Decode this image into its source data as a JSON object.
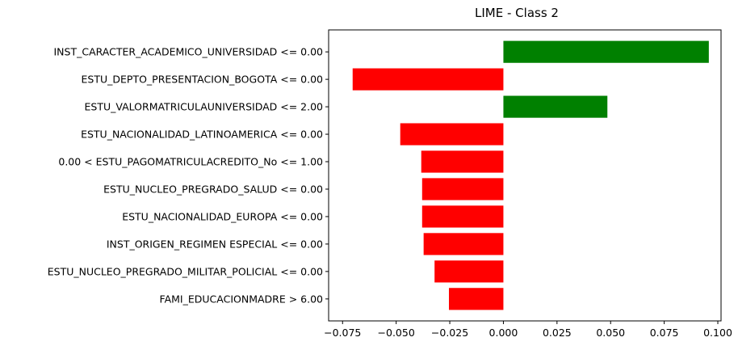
{
  "chart_data": {
    "type": "bar",
    "orientation": "horizontal",
    "title": "LIME - Class 2",
    "xlabel": "",
    "ylabel": "",
    "xlim": [
      -0.0815,
      0.1015
    ],
    "xticks": [
      -0.075,
      -0.05,
      -0.025,
      0.0,
      0.025,
      0.05,
      0.075,
      0.1
    ],
    "xtick_labels": [
      "−0.075",
      "−0.050",
      "−0.025",
      "0.000",
      "0.025",
      "0.050",
      "0.075",
      "0.100"
    ],
    "grid": false,
    "positive_color": "#008000",
    "negative_color": "#ff0000",
    "categories": [
      "INST_CARACTER_ACADEMICO_UNIVERSIDAD <= 0.00",
      "ESTU_DEPTO_PRESENTACION_BOGOTA <= 0.00",
      "ESTU_VALORMATRICULAUNIVERSIDAD <= 2.00",
      "ESTU_NACIONALIDAD_LATINOAMERICA <= 0.00",
      "0.00 < ESTU_PAGOMATRICULACREDITO_No <= 1.00",
      "ESTU_NUCLEO_PREGRADO_SALUD <= 0.00",
      "ESTU_NACIONALIDAD_EUROPA <= 0.00",
      "INST_ORIGEN_REGIMEN ESPECIAL <= 0.00",
      "ESTU_NUCLEO_PREGRADO_MILITAR_POLICIAL <= 0.00",
      "FAMI_EDUCACIONMADRE > 6.00"
    ],
    "values": [
      0.0958,
      -0.0703,
      0.0485,
      -0.0481,
      -0.0383,
      -0.0379,
      -0.0379,
      -0.0372,
      -0.0321,
      -0.0254
    ]
  }
}
